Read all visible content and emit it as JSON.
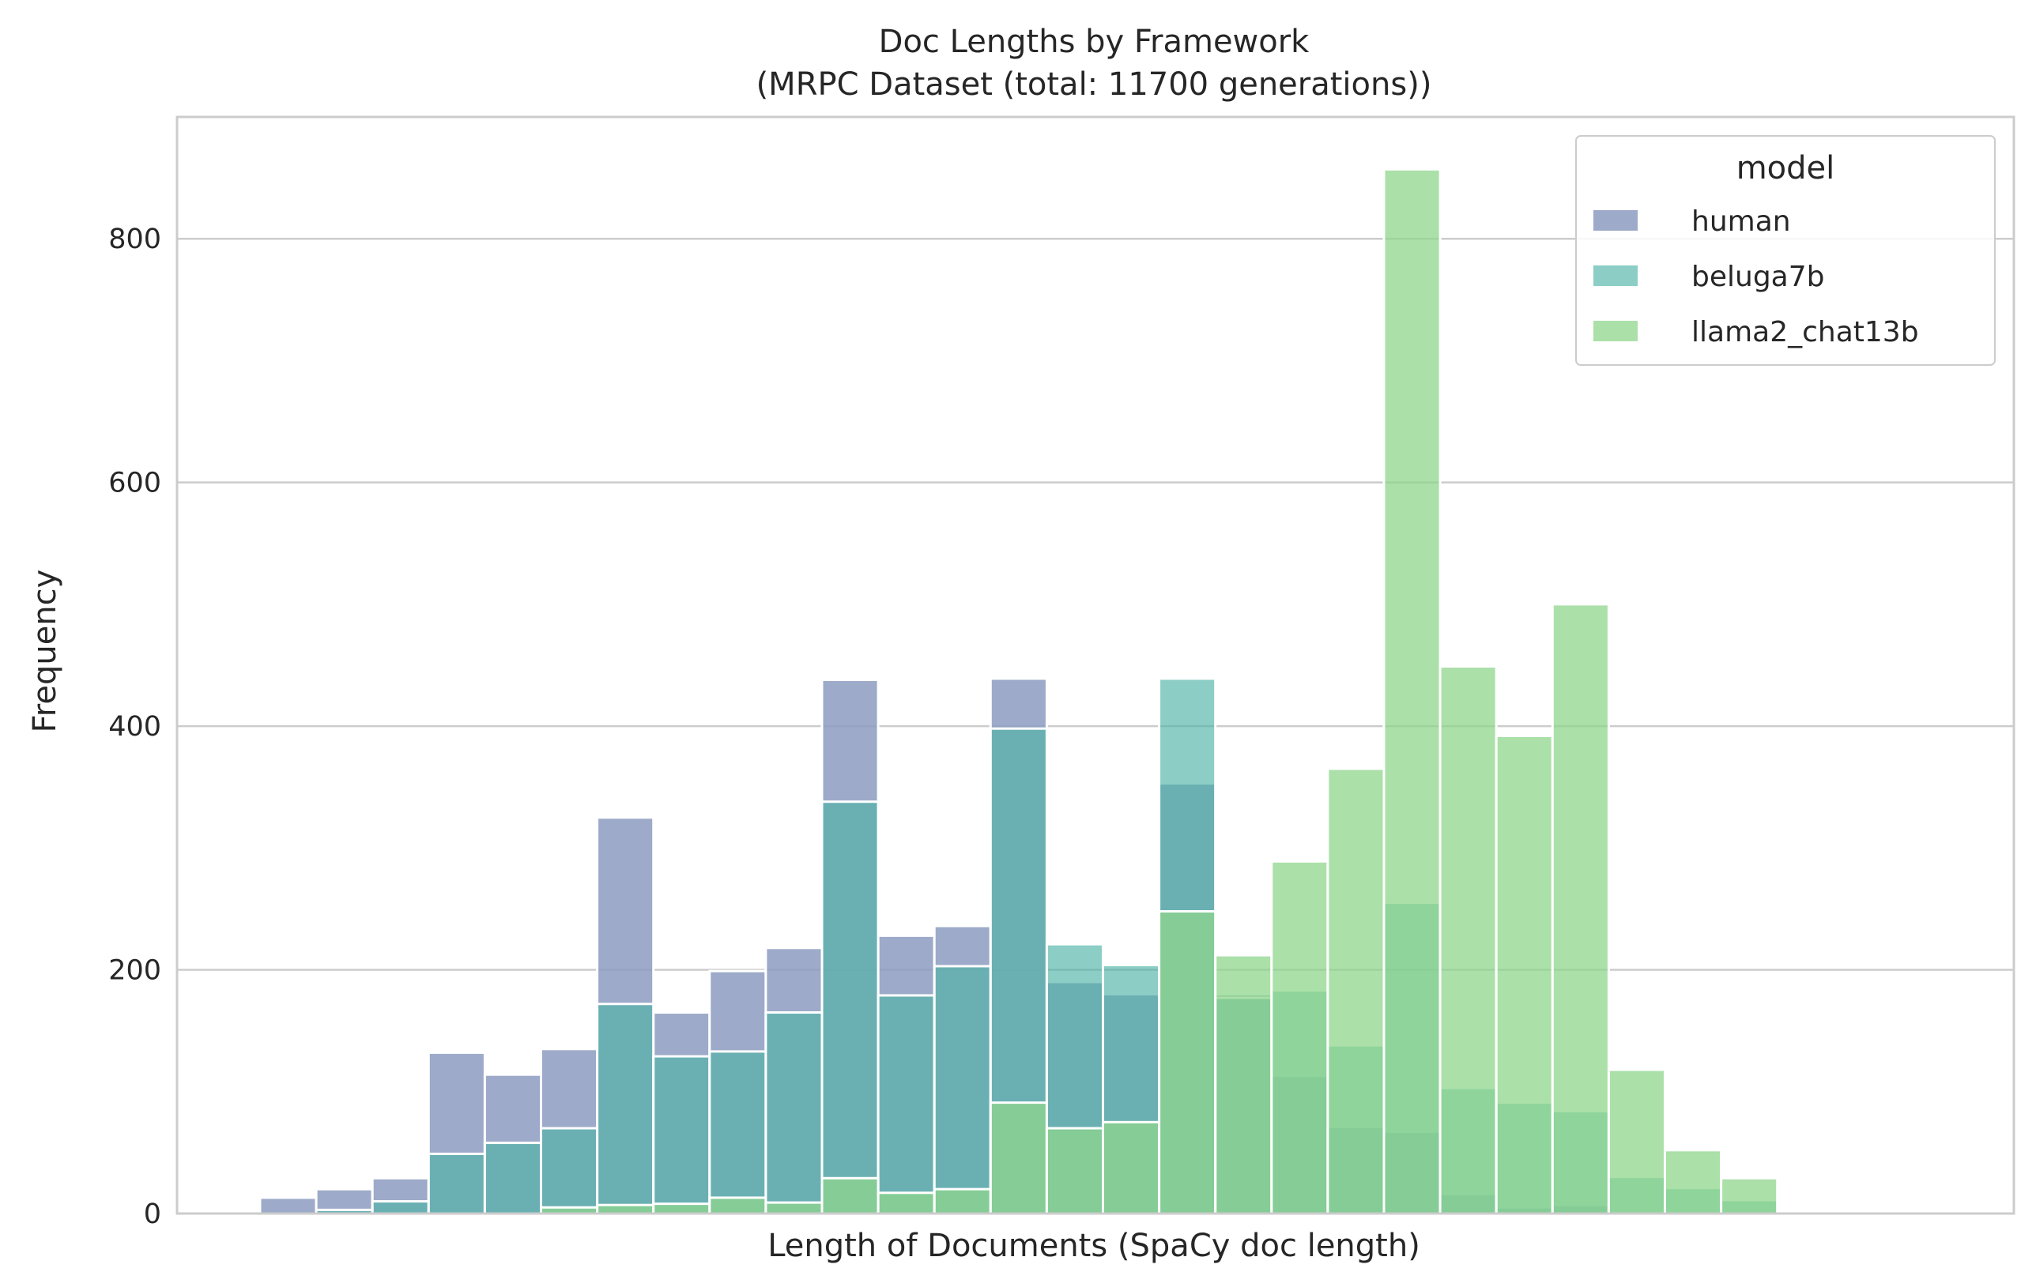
{
  "chart_data": {
    "type": "bar",
    "title": "Doc Lengths by Framework",
    "subtitle": "(MRPC Dataset (total: 11700 generations))",
    "xlabel": "Length of Documents (SpaCy doc length)",
    "ylabel": "Frequency",
    "ylim": [
      0,
      900
    ],
    "yticks": [
      0,
      200,
      400,
      600,
      800
    ],
    "grid": true,
    "legend": {
      "title": "model",
      "placement": "top-right"
    },
    "bins": 31,
    "series": [
      {
        "name": "human",
        "color": "#8c9bbf",
        "values": [
          13,
          20,
          29,
          132,
          114,
          135,
          325,
          165,
          199,
          218,
          438,
          228,
          236,
          439,
          190,
          180,
          353,
          180,
          113,
          71,
          67,
          16,
          5,
          7,
          0,
          0,
          0,
          0,
          0,
          0,
          0
        ]
      },
      {
        "name": "beluga7b",
        "color": "#4fb3a8",
        "values": [
          0,
          3,
          10,
          49,
          58,
          70,
          172,
          129,
          133,
          165,
          338,
          179,
          203,
          398,
          221,
          204,
          439,
          177,
          183,
          138,
          255,
          103,
          91,
          84,
          30,
          21,
          11,
          0,
          0,
          0,
          0
        ]
      },
      {
        "name": "llama2_chat13b",
        "color": "#8fd68c",
        "values": [
          0,
          0,
          0,
          0,
          0,
          5,
          7,
          8,
          13,
          9,
          29,
          17,
          20,
          91,
          70,
          75,
          248,
          212,
          289,
          365,
          857,
          449,
          392,
          500,
          118,
          52,
          29,
          0,
          0,
          0,
          0
        ]
      }
    ]
  }
}
